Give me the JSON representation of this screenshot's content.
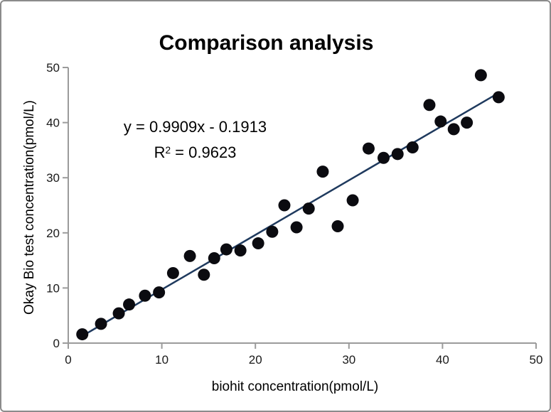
{
  "window": {
    "background": "#ffffff",
    "border_color": "#8b8b8b"
  },
  "chart_data": {
    "type": "scatter",
    "title": "Comparison analysis",
    "xlabel": "biohit concentration(pmol/L)",
    "ylabel": "Okay Bio test concentration(pmol/L)",
    "xlim": [
      0,
      50
    ],
    "ylim": [
      0,
      50
    ],
    "x_ticks": [
      0,
      10,
      20,
      30,
      40,
      50
    ],
    "y_ticks": [
      0,
      10,
      20,
      30,
      40,
      50
    ],
    "grid": false,
    "legend": false,
    "points": [
      [
        1.5,
        1.6
      ],
      [
        3.5,
        3.5
      ],
      [
        5.4,
        5.4
      ],
      [
        6.5,
        7.0
      ],
      [
        8.2,
        8.6
      ],
      [
        9.7,
        9.2
      ],
      [
        11.2,
        12.7
      ],
      [
        13.0,
        15.8
      ],
      [
        14.5,
        12.4
      ],
      [
        15.6,
        15.4
      ],
      [
        16.9,
        17.0
      ],
      [
        18.4,
        16.8
      ],
      [
        20.3,
        18.1
      ],
      [
        21.8,
        20.2
      ],
      [
        23.1,
        25.0
      ],
      [
        24.4,
        21.0
      ],
      [
        25.7,
        24.4
      ],
      [
        27.2,
        31.1
      ],
      [
        28.8,
        21.2
      ],
      [
        30.4,
        25.9
      ],
      [
        32.1,
        35.3
      ],
      [
        33.7,
        33.6
      ],
      [
        35.2,
        34.3
      ],
      [
        36.8,
        35.5
      ],
      [
        38.6,
        43.2
      ],
      [
        39.8,
        40.2
      ],
      [
        41.2,
        38.8
      ],
      [
        42.6,
        40.0
      ],
      [
        44.1,
        48.6
      ],
      [
        46.0,
        44.6
      ]
    ],
    "trendline": {
      "type": "linear",
      "slope": 0.9909,
      "intercept": -0.1913,
      "x_start": 1.5,
      "x_end": 45.95
    },
    "annotation": {
      "equation_line1": "y = 0.9909x - 0.1913",
      "r2_base": "R",
      "r2_sup": "2",
      "r2_rest": " = 0.9623"
    },
    "colors": {
      "point": "#0b0b10",
      "trendline": "#1f3a5e",
      "axis": "#9b9b9b",
      "text": "#000000"
    }
  }
}
